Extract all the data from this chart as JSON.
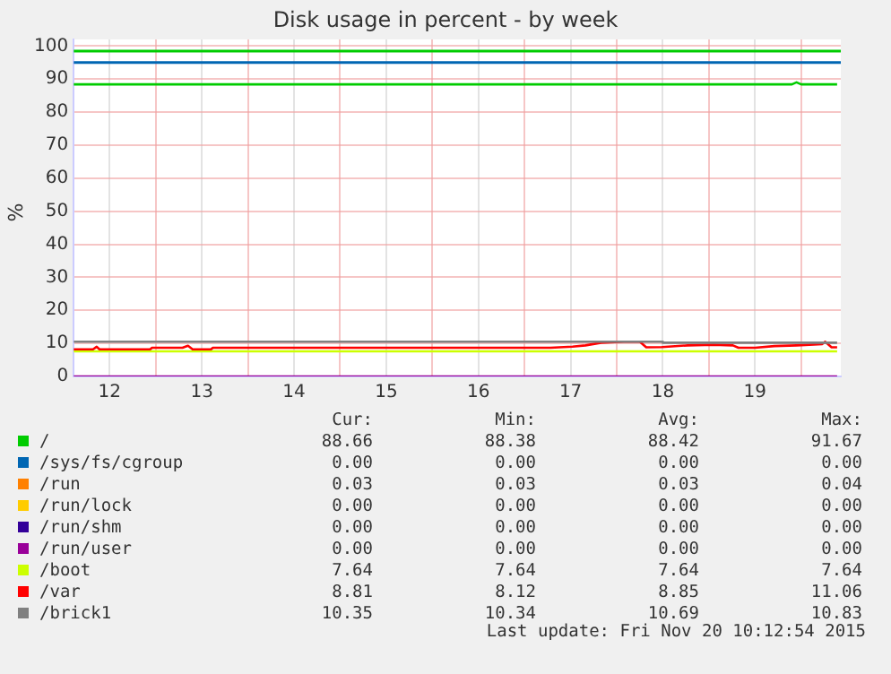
{
  "chart_data": {
    "type": "line",
    "title": "Disk usage in percent - by week",
    "ylabel": "%",
    "xlim": [
      12.11,
      20.43
    ],
    "ylim": [
      0,
      102
    ],
    "xticks": [
      {
        "value": 12.5,
        "label": "12"
      },
      {
        "value": 13,
        "label": null
      },
      {
        "value": 13.5,
        "label": "13"
      },
      {
        "value": 14,
        "label": null
      },
      {
        "value": 14.5,
        "label": "14"
      },
      {
        "value": 15,
        "label": null
      },
      {
        "value": 15.5,
        "label": "15"
      },
      {
        "value": 16,
        "label": null
      },
      {
        "value": 16.5,
        "label": "16"
      },
      {
        "value": 17,
        "label": null
      },
      {
        "value": 17.5,
        "label": "17"
      },
      {
        "value": 18,
        "label": null
      },
      {
        "value": 18.5,
        "label": "18"
      },
      {
        "value": 19,
        "label": null
      },
      {
        "value": 19.5,
        "label": "19"
      },
      {
        "value": 20,
        "label": null
      }
    ],
    "yticks": [
      0,
      10,
      20,
      30,
      40,
      50,
      60,
      70,
      80,
      90,
      100
    ],
    "grid": true,
    "legend": "bottom",
    "marker": "none",
    "line_style": "solid",
    "ref_lines": [
      {
        "axis": "y",
        "value": 98.5,
        "color": "#00cc00"
      },
      {
        "axis": "y",
        "value": 95,
        "color": "#0066b3"
      }
    ],
    "series": [
      {
        "name": "/",
        "color": "#00cc00",
        "x": [
          12.11,
          19.9,
          19.95,
          20.0,
          20.39
        ],
        "values": [
          88.4,
          88.4,
          89.0,
          88.4,
          88.4
        ]
      },
      {
        "name": "/sys/fs/cgroup",
        "color": "#0066b3"
      },
      {
        "name": "/run",
        "color": "#ff8000"
      },
      {
        "name": "/run/lock",
        "color": "#ffcc00"
      },
      {
        "name": "/run/shm",
        "color": "#330099"
      },
      {
        "name": "/run/user",
        "color": "#990099",
        "x": [
          12.11,
          20.39
        ],
        "values": [
          0,
          0
        ]
      },
      {
        "name": "/boot",
        "color": "#ccff00",
        "x": [
          12.11,
          20.39
        ],
        "values": [
          7.6,
          7.6
        ]
      },
      {
        "name": "/var",
        "color": "#ff0000",
        "x": [
          12.11,
          12.32,
          12.36,
          12.39,
          12.94,
          12.96,
          13.29,
          13.35,
          13.4,
          13.6,
          13.62,
          17.28,
          17.52,
          17.66,
          17.83,
          18.08,
          18.25,
          18.32,
          18.49,
          18.77,
          19.05,
          19.26,
          19.32,
          19.5,
          19.71,
          19.95,
          20.23,
          20.26,
          20.33,
          20.39
        ],
        "values": [
          8.2,
          8.2,
          9.0,
          8.2,
          8.2,
          8.7,
          8.7,
          9.3,
          8.2,
          8.2,
          8.7,
          8.7,
          9.0,
          9.4,
          10.2,
          10.5,
          10.5,
          8.8,
          8.9,
          9.4,
          9.6,
          9.4,
          8.7,
          8.7,
          9.2,
          9.4,
          9.8,
          10.5,
          8.8,
          8.8
        ]
      },
      {
        "name": "/brick1",
        "color": "#808080",
        "x": [
          12.11,
          18.49,
          18.5,
          20.39
        ],
        "values": [
          10.5,
          10.5,
          10.2,
          10.2
        ]
      }
    ],
    "annotations": [
      "Cur:",
      "Min:",
      "Avg:",
      "Max:",
      "88.66",
      "88.38",
      "88.42",
      "91.67",
      "0.00",
      "0.00",
      "0.00",
      "0.00",
      "0.03",
      "0.03",
      "0.03",
      "0.04",
      "0.00",
      "0.00",
      "0.00",
      "0.00",
      "0.00",
      "0.00",
      "0.00",
      "0.00",
      "0.00",
      "0.00",
      "0.00",
      "0.00",
      "7.64",
      "7.64",
      "7.64",
      "7.64",
      "8.81",
      "8.12",
      "8.85",
      "11.06",
      "10.35",
      "10.34",
      "10.69",
      "10.83",
      "Last update: Fri Nov 20 10:12:54 2015"
    ]
  }
}
